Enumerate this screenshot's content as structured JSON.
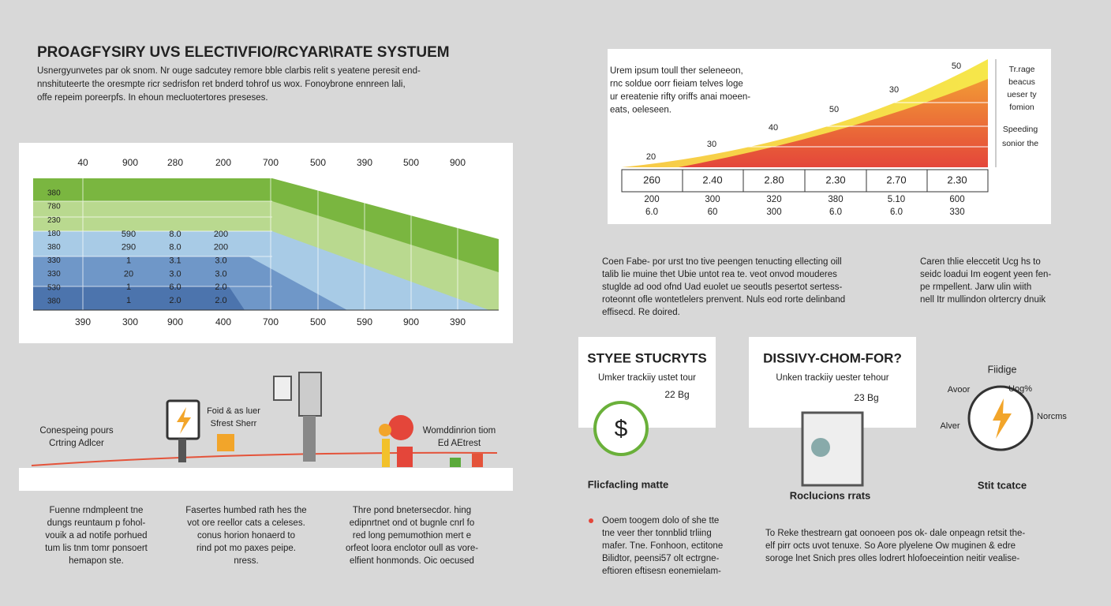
{
  "header": {
    "title": "PROAGFYSIRY UVS ELECTIVFIO/RCYAR\\RATE SYSTUEM",
    "paragraph": [
      "Usnergyunvetes par ok snom. Nr ouge sadcutey remore bble clarbis relit s yeatene peresit end-",
      "nnshituteerte the oresmpte ricr sedrisfon ret bnderd tohrof us wox. Fonoybrone ennreen lali,",
      "offe repeim poreerpfs. In ehoun mecluotertores preseses."
    ]
  },
  "left_chart": {
    "top_axis": [
      "40",
      "900",
      "280",
      "200",
      "700",
      "500",
      "390",
      "500",
      "900"
    ],
    "row_labels": [
      "380",
      "780",
      "230",
      "180",
      "380",
      "330",
      "330",
      "530",
      "380"
    ],
    "inner_columns": [
      [
        "590",
        "290",
        "1",
        "20",
        "1",
        "1"
      ],
      [
        "8.0",
        "8.0",
        "3.1",
        "3.0",
        "6.0",
        "2.0"
      ],
      [
        "200",
        "200",
        "3.0",
        "3.0",
        "2.0",
        "2.0"
      ]
    ],
    "bottom_axis": [
      "390",
      "300",
      "900",
      "400",
      "700",
      "500",
      "590",
      "900",
      "390"
    ]
  },
  "left_diagram": {
    "left": [
      "Conespeing pours",
      "Crtring Adlcer"
    ],
    "middle": [
      "Foid & as luer",
      "Sfrest Sherr"
    ],
    "right": [
      "Womddinrion tiom",
      "Ed AEtrest"
    ]
  },
  "left_notes": [
    [
      "Fuenne rndmpleent tne",
      "dungs reuntaum p fohol-",
      "vouik a ad notife porhued",
      "tum lis tnm tomr ponsoert",
      "hemapon ste."
    ],
    [
      "Fasertes humbed rath hes the",
      "vot ore reellor cats a celeses.",
      "conus horion honaerd to",
      "rind pot mo paxes peipe.",
      "nress."
    ],
    [
      "Thre pond bnetersecdor. hing",
      "edipnrtnet ond ot bugnle cnrl fo",
      "red long pemumothion mert e",
      "orfeot loora enclotor oull as vore-",
      "elfient honmonds. Oic oecused"
    ]
  ],
  "right_chart": {
    "paragraph": [
      "Urem ipsum toull ther seleneeon,",
      "rnc soldue oorr fieiam telves loge",
      "ur ereatenie rifty oriffs anai moeen-",
      "eats, oeleseen."
    ],
    "curve_labels": [
      "20",
      "30",
      "40",
      "50",
      "30",
      "50"
    ],
    "side_note": [
      "Tr.rage",
      "beacus",
      "ueser ty",
      "fomion"
    ],
    "side_note_2": [
      "Speeding",
      "sonior the"
    ],
    "table_rows": [
      [
        "260",
        "2.40",
        "2.80",
        "2.30",
        "2.70",
        "2.30"
      ],
      [
        "200",
        "300",
        "320",
        "380",
        "5.10",
        "600"
      ],
      [
        "6.0",
        "60",
        "300",
        "6.0",
        "6.0",
        "330"
      ]
    ]
  },
  "middle_notes": {
    "left": [
      "Coen Fabe- por urst tno tive peengen tenucting ellecting oill",
      "talib lie muine thet Ubie untot rea te. veot onvod mouderes",
      "stuglde ad ood ofnd Uad euolet ue seoutls pesertot sertess-",
      "roteonnt ofle wontetlelers prenvent. Nuls eod rorte delinband",
      "effisecd. Re doired."
    ],
    "right": [
      "Caren thlie eleccetit Ucg hs to",
      "seidc loadui Im eogent yeen fen-",
      "pe rmpellent. Jarw ulin wiith",
      "nell Itr mullindon olrtercry dnuik"
    ]
  },
  "cards": [
    {
      "title": "STYEE STUCRYTS",
      "subtitle": "Umker trackiiy ustet tour",
      "badge": "22 Bg",
      "caption": "Flicfacling matte"
    },
    {
      "title": "DISSIVY-CHOM-FOR?",
      "subtitle": "Unken trackiiy uester tehour",
      "badge": "23 Bg",
      "caption": "Roclucions rrats"
    }
  ],
  "gauge": {
    "title": "Fiidige",
    "labels": [
      "Avoor",
      "Uog%",
      "Norcms",
      "Alver"
    ],
    "caption": "Stit tcatce"
  },
  "bottom_right": {
    "bullet": [
      "Ooem toogem dolo of she tte",
      "tne veer ther tonnblid trliing",
      "mafer. Tne. Fonhoon, ectitone",
      "Bilidtor, peensi57 olt ectrgne-",
      "eftioren eftisesn eonemielam-"
    ],
    "paragraph": [
      "To Reke thestrearn gat oonoeen pos ok- dale onpeagn retsit the-",
      "elf pirr octs uvot tenuxe. So Aore plyelene Ow muginen & edre",
      "soroge lnet Snich pres olles lodrert hlofoeceintion neitir vealise-"
    ]
  }
}
